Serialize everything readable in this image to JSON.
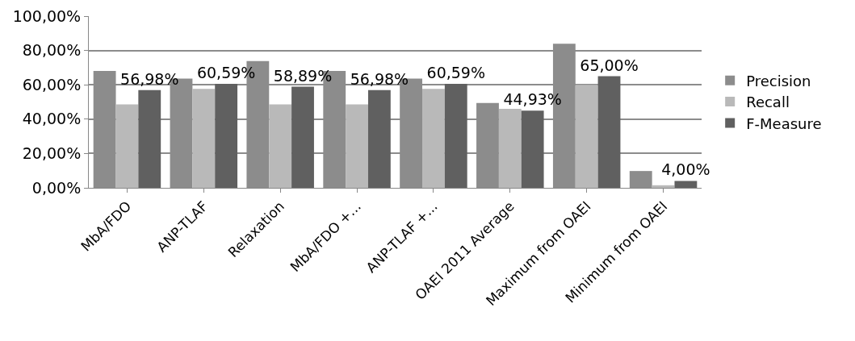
{
  "chart_data": {
    "type": "bar",
    "categories": [
      "MbA/FDO",
      "ANP-TLAF",
      "Relaxation",
      "MbA/FDO +...",
      "ANP-TLAF +...",
      "OAEI 2011 Average",
      "Maximum from OAEI",
      "Minimum from OAEI"
    ],
    "series": [
      {
        "name": "Precision",
        "color": "#8c8c8c",
        "values": [
          68.1,
          63.6,
          73.8,
          68.1,
          63.6,
          49.4,
          83.9,
          9.8
        ]
      },
      {
        "name": "Recall",
        "color": "#b9b9b9",
        "values": [
          48.6,
          57.6,
          48.6,
          48.6,
          57.6,
          46.0,
          60.0,
          1.5
        ]
      },
      {
        "name": "F-Measure",
        "color": "#606060",
        "values": [
          56.98,
          60.59,
          58.89,
          56.98,
          60.59,
          44.93,
          65.0,
          4.0
        ],
        "value_labels": [
          "56,98%",
          "60,59%",
          "58,89%",
          "56,98%",
          "60,59%",
          "44,93%",
          "65,00%",
          "4,00%"
        ]
      }
    ],
    "ylim": [
      0,
      100
    ],
    "yticks": [
      {
        "value": 0,
        "label": "0,00%"
      },
      {
        "value": 20,
        "label": "20,00%"
      },
      {
        "value": 40,
        "label": "40,00%"
      },
      {
        "value": 60,
        "label": "60,00%"
      },
      {
        "value": 80,
        "label": "80,00%"
      },
      {
        "value": 100,
        "label": "100,00%"
      }
    ],
    "grid": "y",
    "legend": "right"
  }
}
